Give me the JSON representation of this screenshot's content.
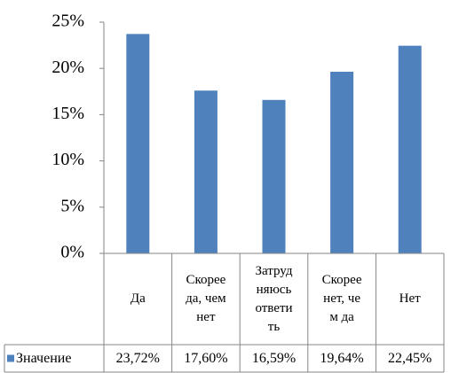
{
  "chart_data": {
    "type": "bar",
    "categories": [
      "Да",
      "Скорее да, чем нет",
      "Затрудняюсь ответить",
      "Скорее нет, чем да",
      "Нет"
    ],
    "series": [
      {
        "name": "Значение",
        "color": "#4f81bd",
        "values": [
          23.72,
          17.6,
          16.59,
          19.64,
          22.45
        ],
        "value_labels": [
          "23,72%",
          "17,60%",
          "16,59%",
          "19,64%",
          "22,45%"
        ]
      }
    ],
    "ylim": [
      0,
      25
    ],
    "yticks": [
      {
        "value": 0,
        "label": "0%"
      },
      {
        "value": 5,
        "label": "5%"
      },
      {
        "value": 10,
        "label": "10%"
      },
      {
        "value": 15,
        "label": "15%"
      },
      {
        "value": 20,
        "label": "20%"
      },
      {
        "value": 25,
        "label": "25%"
      }
    ],
    "grid": false,
    "data_table": true
  }
}
